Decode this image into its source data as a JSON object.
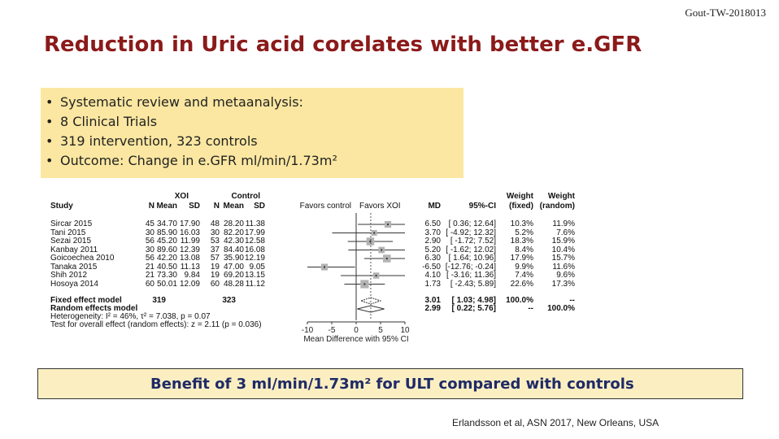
{
  "slide": {
    "tag": "Gout-TW-2018013",
    "title": "Reduction in Uric acid corelates with better e.GFR",
    "bullets": [
      "Systematic review and metaanalysis:",
      "8 Clinical Trials",
      "319 intervention, 323 controls",
      "Outcome: Change in e.GFR ml/min/1.73m²"
    ],
    "bullet_glyph": "•",
    "callout": "Benefit of 3 ml/min/1.73m² for ULT compared with controls",
    "citation": "Erlandsson et al, ASN 2017, New Orleans, USA",
    "callout_fill": "#fbefc2",
    "bullet_fill": "#fbe7a1",
    "title_color": "#8b1a1a",
    "callout_text_color": "#1f2a66"
  },
  "forest": {
    "group_headers": {
      "xoi": "XOI",
      "control": "Control"
    },
    "columns": {
      "study": "Study",
      "n": "N",
      "mean": "Mean",
      "sd": "SD",
      "favors_control": "Favors control",
      "favors_xoi": "Favors XOI",
      "md": "MD",
      "ci": "95%-CI",
      "w_fixed": "Weight\n(fixed)",
      "w_random": "Weight\n(random)",
      "w_fixed_1": "Weight",
      "w_fixed_2": "(fixed)",
      "w_random_1": "Weight",
      "w_random_2": "(random)"
    },
    "studies": [
      {
        "name": "Sircar 2015",
        "n1": "45",
        "m1": "34.70",
        "sd1": "17.90",
        "n2": "48",
        "m2": "28.20",
        "sd2": "11.38",
        "md": "6.50",
        "ci": "[ 0.36; 12.64]",
        "wf": "10.3%",
        "wr": "11.9%"
      },
      {
        "name": "Tani 2015",
        "n1": "30",
        "m1": "85.90",
        "sd1": "16.03",
        "n2": "30",
        "m2": "82.20",
        "sd2": "17.99",
        "md": "3.70",
        "ci": "[ -4.92; 12.32]",
        "wf": "5.2%",
        "wr": "7.6%"
      },
      {
        "name": "Sezai 2015",
        "n1": "56",
        "m1": "45.20",
        "sd1": "11.99",
        "n2": "53",
        "m2": "42.30",
        "sd2": "12.58",
        "md": "2.90",
        "ci": "[ -1.72;  7.52]",
        "wf": "18.3%",
        "wr": "15.9%"
      },
      {
        "name": "Kanbay 2011",
        "n1": "30",
        "m1": "89.60",
        "sd1": "12.39",
        "n2": "37",
        "m2": "84.40",
        "sd2": "16.08",
        "md": "5.20",
        "ci": "[ -1.62; 12.02]",
        "wf": "8.4%",
        "wr": "10.4%"
      },
      {
        "name": "Goicoechea 2010",
        "n1": "56",
        "m1": "42.20",
        "sd1": "13.08",
        "n2": "57",
        "m2": "35.90",
        "sd2": "12.19",
        "md": "6.30",
        "ci": "[  1.64; 10.96]",
        "wf": "17.9%",
        "wr": "15.7%"
      },
      {
        "name": "Tanaka 2015",
        "n1": "21",
        "m1": "40.50",
        "sd1": "11.13",
        "n2": "19",
        "m2": "47.00",
        "sd2": "9.05",
        "md": "-6.50",
        "ci": "[-12.76; -0.24]",
        "wf": "9.9%",
        "wr": "11.6%"
      },
      {
        "name": "Shih 2012",
        "n1": "21",
        "m1": "73.30",
        "sd1": "9.84",
        "n2": "19",
        "m2": "69.20",
        "sd2": "13.15",
        "md": "4.10",
        "ci": "[ -3.16; 11.36]",
        "wf": "7.4%",
        "wr": "9.6%"
      },
      {
        "name": "Hosoya 2014",
        "n1": "60",
        "m1": "50.01",
        "sd1": "12.09",
        "n2": "60",
        "m2": "48.28",
        "sd2": "11.12",
        "md": "1.73",
        "ci": "[ -2.43;  5.89]",
        "wf": "22.6%",
        "wr": "17.3%"
      }
    ],
    "fixed": {
      "label": "Fixed effect model",
      "n1": "319",
      "n2": "323",
      "md": "3.01",
      "ci": "[ 1.03;  4.98]",
      "wf": "100.0%",
      "wr": "--"
    },
    "random": {
      "label": "Random effects model",
      "md": "2.99",
      "ci": "[ 0.22;  5.76]",
      "wf": "--",
      "wr": "100.0%"
    },
    "heterogeneity": "Heterogeneity: I² = 46%, τ² = 7.038, p = 0.07",
    "overall_test": "Test for overall effect (random effects): z = 2.11 (p = 0.036)",
    "axis_ticks": [
      "-10",
      "-5",
      "0",
      "5",
      "10"
    ],
    "axis_tick_values": [
      -10,
      -5,
      0,
      5,
      10
    ],
    "axis_label": "Mean Difference with 95% CI",
    "xlim": [
      -10,
      10
    ],
    "fixed_md": 3.01,
    "fixed_lo": 1.03,
    "fixed_hi": 4.98,
    "random_md": 2.99,
    "random_lo": 0.22,
    "random_hi": 5.76,
    "study_md": [
      6.5,
      3.7,
      2.9,
      5.2,
      6.3,
      -6.5,
      4.1,
      1.73
    ],
    "study_lo": [
      0.36,
      -4.92,
      -1.72,
      -1.62,
      1.64,
      -12.76,
      -3.16,
      -2.43
    ],
    "study_hi": [
      12.64,
      12.32,
      7.52,
      12.02,
      10.96,
      -0.24,
      11.36,
      5.89
    ],
    "study_weight_fixed": [
      10.3,
      5.2,
      18.3,
      8.4,
      17.9,
      9.9,
      7.4,
      22.6
    ]
  }
}
